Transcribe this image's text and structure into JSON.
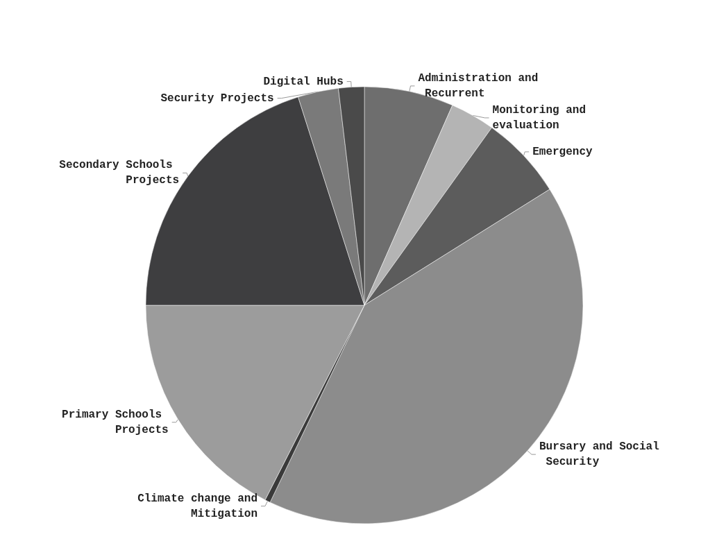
{
  "chart_data": {
    "type": "pie",
    "categories": [
      "Administration and Recurrent",
      "Monitoring and evaluation",
      "Emergency",
      "Bursary and Social Security",
      "Climate change and Mitigation",
      "Primary Schools Projects",
      "Secondary Schools Projects",
      "Security Projects",
      "Digital Hubs"
    ],
    "values": [
      6.6,
      3.3,
      6.2,
      41.0,
      0.4,
      17.5,
      20.1,
      3.0,
      1.9
    ],
    "colors": [
      "#6e6e6e",
      "#b4b4b4",
      "#5c5c5c",
      "#8c8c8c",
      "#3a3a3a",
      "#9c9c9c",
      "#3e3e40",
      "#7a7a7a",
      "#4a4a4a"
    ],
    "legend": false
  }
}
